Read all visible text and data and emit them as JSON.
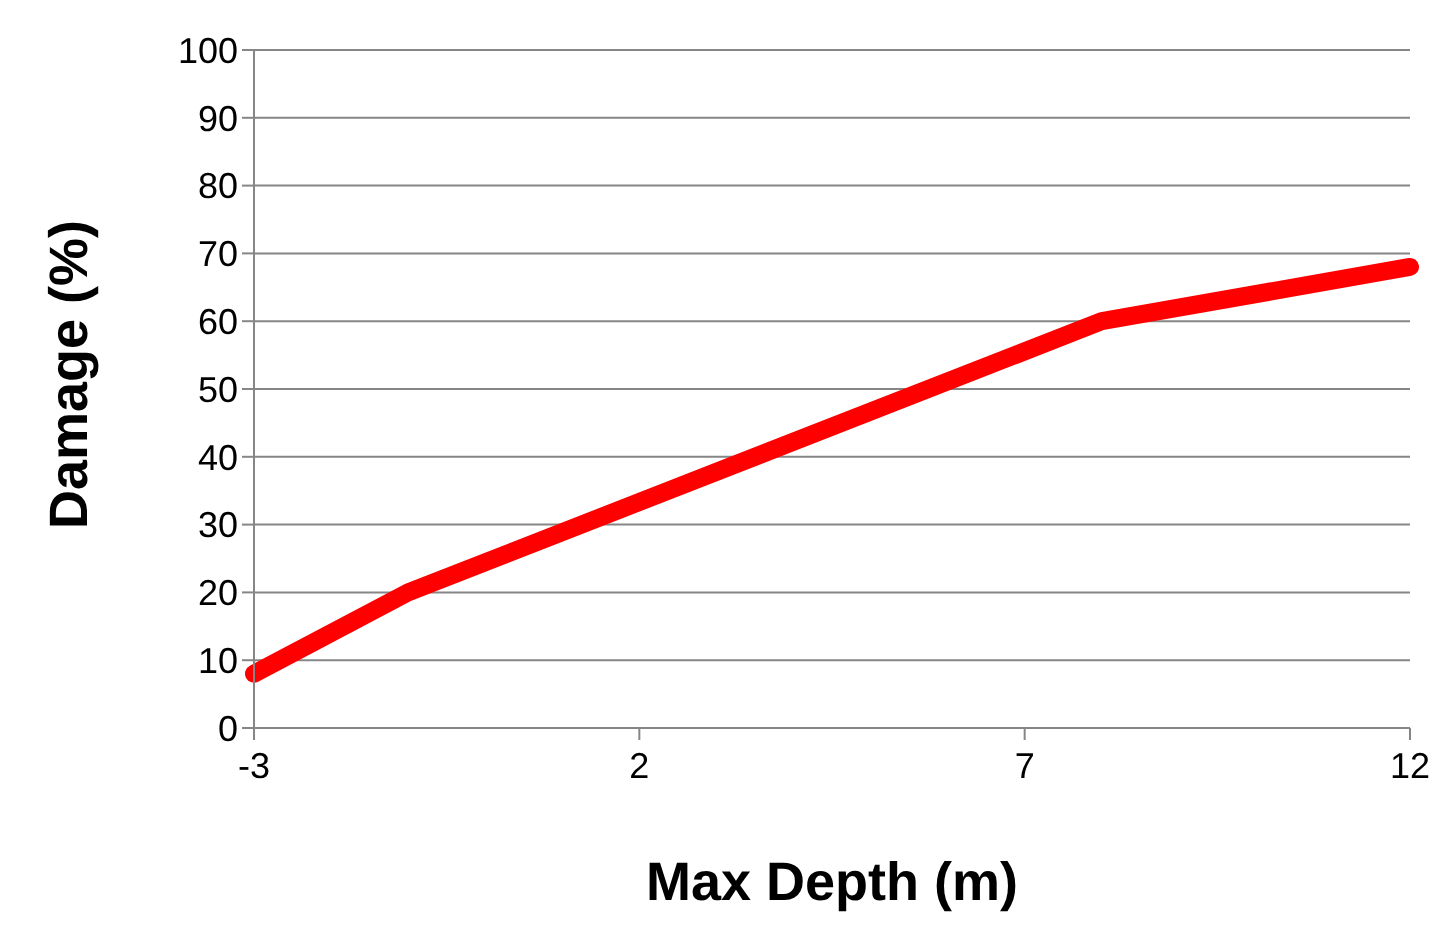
{
  "chart_data": {
    "type": "line",
    "xlabel": "Max Depth (m)",
    "ylabel": "Damage (%)",
    "x": [
      -3,
      -1,
      8,
      12
    ],
    "series": [
      {
        "color": "#ff0000",
        "values": [
          8,
          20,
          60,
          68
        ]
      }
    ],
    "xlim": [
      -3,
      12
    ],
    "xticks": [
      -3,
      2,
      7,
      12
    ],
    "ylim": [
      0,
      100
    ],
    "yticks": [
      0,
      10,
      20,
      30,
      40,
      50,
      60,
      70,
      80,
      90,
      100
    ],
    "grid": "y",
    "legend": false,
    "marker": "none",
    "line_style": "solid"
  }
}
